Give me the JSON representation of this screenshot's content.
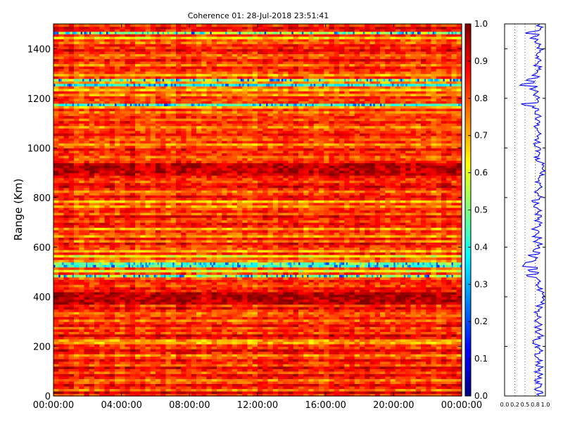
{
  "chart_data": [
    {
      "type": "heatmap",
      "title": "Coherence 01: 28-Jul-2018 23:51:41",
      "xlabel": "",
      "ylabel": "Range (Km)",
      "x_ticks": [
        "00:00:00",
        "04:00:00",
        "08:00:00",
        "12:00:00",
        "16:00:00",
        "20:00:00",
        "00:00:00"
      ],
      "y_ticks": [
        0,
        200,
        400,
        600,
        800,
        1000,
        1200,
        1400
      ],
      "ylim": [
        0,
        1500
      ],
      "colormap": "jet",
      "colorbar": {
        "vmin": 0.0,
        "vmax": 1.0,
        "ticks": [
          "0.0",
          "0.1",
          "0.2",
          "0.3",
          "0.4",
          "0.5",
          "0.6",
          "0.7",
          "0.8",
          "0.9",
          "1.0"
        ]
      },
      "time_steps": 240,
      "range_bins": 150,
      "row_coherence": [
        0.82,
        0.93,
        0.76,
        0.84,
        0.9,
        0.8,
        0.75,
        0.86,
        0.89,
        0.79,
        0.85,
        0.91,
        0.78,
        0.83,
        0.88,
        0.8,
        0.74,
        0.86,
        0.9,
        0.81,
        0.83,
        0.7,
        0.72,
        0.85,
        0.92,
        0.8,
        0.84,
        0.79,
        0.88,
        0.83,
        0.76,
        0.85,
        0.8,
        0.77,
        0.84,
        0.9,
        0.82,
        0.93,
        0.95,
        0.94,
        0.96,
        0.94,
        0.85,
        0.88,
        0.8,
        0.83,
        0.86,
        0.79,
        0.55,
        0.82,
        0.6,
        0.8,
        0.45,
        0.5,
        0.72,
        0.78,
        0.62,
        0.85,
        0.7,
        0.8,
        0.82,
        0.88,
        0.75,
        0.86,
        0.72,
        0.8,
        0.83,
        0.7,
        0.85,
        0.88,
        0.8,
        0.83,
        0.9,
        0.78,
        0.85,
        0.82,
        0.72,
        0.8,
        0.68,
        0.85,
        0.88,
        0.82,
        0.76,
        0.84,
        0.9,
        0.87,
        0.8,
        0.83,
        0.86,
        0.92,
        0.94,
        0.93,
        0.95,
        0.94,
        0.84,
        0.8,
        0.78,
        0.85,
        0.82,
        0.88,
        0.79,
        0.73,
        0.84,
        0.78,
        0.81,
        0.86,
        0.83,
        0.8,
        0.74,
        0.82,
        0.86,
        0.78,
        0.84,
        0.8,
        0.75,
        0.83,
        0.7,
        0.45,
        0.82,
        0.8,
        0.84,
        0.72,
        0.8,
        0.68,
        0.76,
        0.4,
        0.72,
        0.55,
        0.82,
        0.7,
        0.8,
        0.83,
        0.86,
        0.75,
        0.82,
        0.88,
        0.8,
        0.78,
        0.84,
        0.9,
        0.82,
        0.86,
        0.76,
        0.8,
        0.66,
        0.83,
        0.55,
        0.85,
        0.9,
        0.82
      ]
    },
    {
      "type": "line",
      "xlabel": "",
      "ylabel": "",
      "x_ticks": [
        "0.0",
        "0.2",
        "0.5",
        "0.8",
        "1.0"
      ],
      "xlim": [
        0,
        1
      ],
      "ylim": [
        0,
        1500
      ],
      "grid": true
    }
  ]
}
